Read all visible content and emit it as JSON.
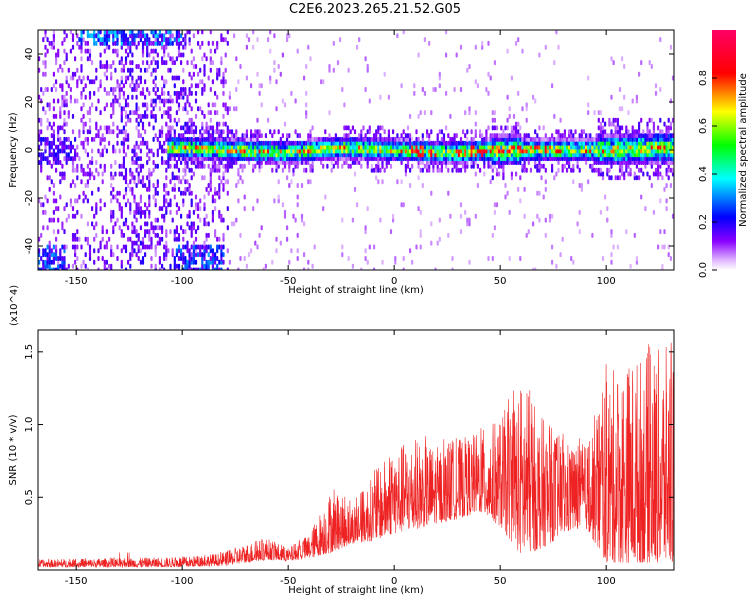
{
  "title": "C2E6.2023.265.21.52.G05",
  "chart_data": [
    {
      "type": "heatmap",
      "xlabel": "Height of straight line (km)",
      "ylabel": "Frequency (Hz)",
      "xlim": [
        -168,
        132
      ],
      "ylim": [
        -50,
        50
      ],
      "x_ticks": [
        -150,
        -100,
        -50,
        0,
        50,
        100
      ],
      "y_ticks": [
        -40,
        -20,
        0,
        20,
        40
      ],
      "colorbar": {
        "label": "Normalized spectral amplitude",
        "range": [
          0,
          1
        ],
        "ticks": [
          "0.0",
          "0.2",
          "0.4",
          "0.6",
          "0.8"
        ],
        "tick_values": [
          0.0,
          0.2,
          0.4,
          0.6,
          0.8
        ],
        "colors": [
          "#ffffff",
          "#e0b8ff",
          "#8a00ff",
          "#0000ff",
          "#00ffff",
          "#00ff00",
          "#ffff00",
          "#ff0000",
          "#ff0066"
        ]
      },
      "center_band": {
        "x": [
          -100,
          -75,
          -50,
          -25,
          0,
          25,
          50,
          75,
          100,
          125,
          132
        ],
        "frequency": [
          1,
          0,
          -1,
          1,
          0,
          -1,
          0,
          0,
          0,
          1,
          1
        ]
      }
    },
    {
      "type": "line",
      "xlabel": "Height of straight line (km)",
      "ylabel": "SNR (10 * v/v)",
      "y_scale_note": "(x10^4)",
      "xlim": [
        -168,
        132
      ],
      "ylim": [
        0,
        1.65
      ],
      "x_ticks": [
        -150,
        -100,
        -50,
        0,
        50,
        100
      ],
      "y_ticks": [
        0.5,
        1.0,
        1.5
      ],
      "y_tick_labels": [
        "0.5",
        "1.0",
        "1.5"
      ],
      "color": "#ee2222",
      "envelope": {
        "x": [
          -168,
          -140,
          -100,
          -80,
          -70,
          -60,
          -50,
          -40,
          -30,
          -20,
          -10,
          0,
          10,
          20,
          30,
          40,
          50,
          60,
          70,
          80,
          90,
          100,
          110,
          120,
          132
        ],
        "upper": [
          0.07,
          0.08,
          0.09,
          0.12,
          0.18,
          0.22,
          0.15,
          0.25,
          0.55,
          0.45,
          0.65,
          0.85,
          0.9,
          0.85,
          0.9,
          0.95,
          1.05,
          1.3,
          1.05,
          0.9,
          0.85,
          1.35,
          1.45,
          1.5,
          1.55
        ],
        "lower": [
          0.02,
          0.02,
          0.02,
          0.03,
          0.05,
          0.07,
          0.06,
          0.08,
          0.12,
          0.18,
          0.2,
          0.25,
          0.28,
          0.32,
          0.35,
          0.4,
          0.3,
          0.1,
          0.15,
          0.25,
          0.3,
          0.05,
          0.05,
          0.05,
          0.05
        ]
      }
    }
  ]
}
